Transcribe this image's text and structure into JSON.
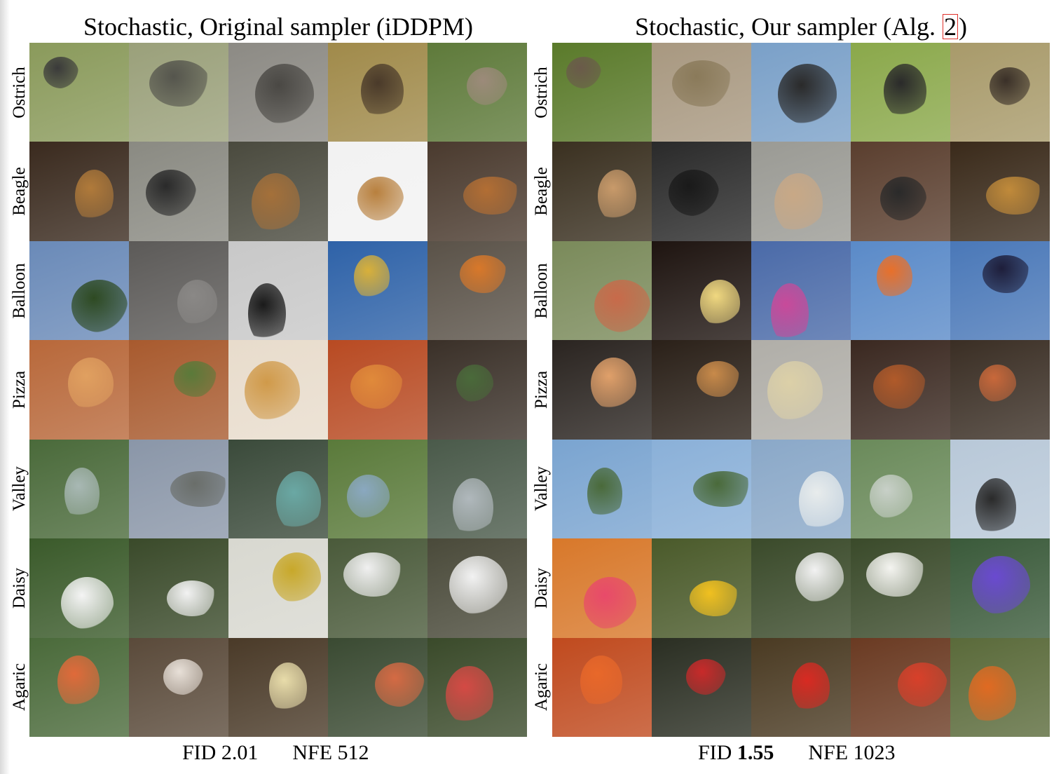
{
  "left": {
    "title": "Stochastic, Original sampler (iDDPM)",
    "footer": {
      "fid_label": "FID",
      "fid_value": "2.01",
      "nfe_label": "NFE",
      "nfe_value": "512"
    }
  },
  "right": {
    "title_prefix": "Stochastic, Our sampler (Alg.",
    "title_ref": "2",
    "title_suffix": ")",
    "footer": {
      "fid_label": "FID",
      "fid_value": "1.55",
      "nfe_label": "NFE",
      "nfe_value": "1023"
    }
  },
  "row_labels": [
    "Ostrich",
    "Beagle",
    "Balloon",
    "Pizza",
    "Valley",
    "Daisy",
    "Agaric"
  ],
  "colors": {
    "reference_box": "#e0302a"
  },
  "left_images": [
    [
      {
        "bg": "#8a9a5b",
        "fg": "#3a3a3a"
      },
      {
        "bg": "#9aa07a",
        "fg": "#55554d"
      },
      {
        "bg": "#8c8a84",
        "fg": "#4a4844"
      },
      {
        "bg": "#a08a4a",
        "fg": "#4a3a2a"
      },
      {
        "bg": "#5e7a3a",
        "fg": "#9c8a7a"
      }
    ],
    [
      {
        "bg": "#3a2a1e",
        "fg": "#b07a3a"
      },
      {
        "bg": "#8a8a82",
        "fg": "#2a2a2a"
      },
      {
        "bg": "#4a4a3e",
        "fg": "#a4703a"
      },
      {
        "bg": "#f2f2f2",
        "fg": "#b8803e"
      },
      {
        "bg": "#4a3a2e",
        "fg": "#b26e34"
      }
    ],
    [
      {
        "bg": "#6a8ab8",
        "fg": "#2e4a22"
      },
      {
        "bg": "#5c5a58",
        "fg": "#8a8886"
      },
      {
        "bg": "#c8c8c8",
        "fg": "#1a1a1a"
      },
      {
        "bg": "#2e62a8",
        "fg": "#d8b03a"
      },
      {
        "bg": "#5a5248",
        "fg": "#d8782a"
      }
    ],
    [
      {
        "bg": "#b8683a",
        "fg": "#e0a060"
      },
      {
        "bg": "#a85a2e",
        "fg": "#5a7a3a"
      },
      {
        "bg": "#e8dccc",
        "fg": "#d09a4a"
      },
      {
        "bg": "#b84a22",
        "fg": "#e08a3a"
      },
      {
        "bg": "#3a3028",
        "fg": "#4a6a3a"
      }
    ],
    [
      {
        "bg": "#4a6a3a",
        "fg": "#a8b8b4"
      },
      {
        "bg": "#8a96a8",
        "fg": "#6a6e6a"
      },
      {
        "bg": "#3a4a3a",
        "fg": "#6aa8a4"
      },
      {
        "bg": "#5a7a3a",
        "fg": "#8aa8c0"
      },
      {
        "bg": "#4a5a4a",
        "fg": "#b0b8bc"
      }
    ],
    [
      {
        "bg": "#3a5a2a",
        "fg": "#f4f4f4"
      },
      {
        "bg": "#3a4a2a",
        "fg": "#f2f2f2"
      },
      {
        "bg": "#d8d8d0",
        "fg": "#c8a82a"
      },
      {
        "bg": "#4a5a3a",
        "fg": "#f0f0f0"
      },
      {
        "bg": "#4a4a3a",
        "fg": "#f2f2f2"
      }
    ],
    [
      {
        "bg": "#4a6a3a",
        "fg": "#e06a3a"
      },
      {
        "bg": "#5a4a3a",
        "fg": "#e8e0d8"
      },
      {
        "bg": "#4a3a28",
        "fg": "#e8dcaa"
      },
      {
        "bg": "#3a4a32",
        "fg": "#d46a44"
      },
      {
        "bg": "#3a4a2a",
        "fg": "#d44a44"
      }
    ]
  ],
  "right_images": [
    [
      {
        "bg": "#5a7a2a",
        "fg": "#6a5a4a"
      },
      {
        "bg": "#a89880",
        "fg": "#8a7a5a"
      },
      {
        "bg": "#7aa0c8",
        "fg": "#2a2a2a"
      },
      {
        "bg": "#8aa84a",
        "fg": "#2a2a2a"
      },
      {
        "bg": "#a89a6a",
        "fg": "#3a3028"
      }
    ],
    [
      {
        "bg": "#3a3020",
        "fg": "#c89a6a"
      },
      {
        "bg": "#2a2a2a",
        "fg": "#1a1a1a"
      },
      {
        "bg": "#9a9a94",
        "fg": "#c8a886"
      },
      {
        "bg": "#5a3e2e",
        "fg": "#2a2a2a"
      },
      {
        "bg": "#3a2a1a",
        "fg": "#c08a3a"
      }
    ],
    [
      {
        "bg": "#7a8a5a",
        "fg": "#c86a4a"
      },
      {
        "bg": "#1e1410",
        "fg": "#f0d880"
      },
      {
        "bg": "#4a6aa8",
        "fg": "#c84a9a"
      },
      {
        "bg": "#5a8ac8",
        "fg": "#e8702a"
      },
      {
        "bg": "#4a78b8",
        "fg": "#1e1e3a"
      }
    ],
    [
      {
        "bg": "#2a2420",
        "fg": "#e0a06a"
      },
      {
        "bg": "#2a2018",
        "fg": "#c88a4a"
      },
      {
        "bg": "#b0aea8",
        "fg": "#dcd0a8"
      },
      {
        "bg": "#3a2820",
        "fg": "#b05a2a"
      },
      {
        "bg": "#3a2e24",
        "fg": "#c8683a"
      }
    ],
    [
      {
        "bg": "#7aa4d0",
        "fg": "#4a6a3a"
      },
      {
        "bg": "#8ab0d8",
        "fg": "#4a6a3a"
      },
      {
        "bg": "#8aa8c8",
        "fg": "#e8ecec"
      },
      {
        "bg": "#6a8a5a",
        "fg": "#c8d0c8"
      },
      {
        "bg": "#b8c8d8",
        "fg": "#2a2a2a"
      }
    ],
    [
      {
        "bg": "#d8782a",
        "fg": "#e84a6a"
      },
      {
        "bg": "#4a5a2a",
        "fg": "#f0c020"
      },
      {
        "bg": "#3a4a2a",
        "fg": "#f2f2f2"
      },
      {
        "bg": "#3a4a2a",
        "fg": "#f4f4f0"
      },
      {
        "bg": "#3a5a3a",
        "fg": "#6a4ad0"
      }
    ],
    [
      {
        "bg": "#c04a1e",
        "fg": "#e8682a"
      },
      {
        "bg": "#2a2e22",
        "fg": "#c82a2a"
      },
      {
        "bg": "#4a3a22",
        "fg": "#d82a22"
      },
      {
        "bg": "#6a3a22",
        "fg": "#d8402a"
      },
      {
        "bg": "#5a6a3a",
        "fg": "#e06a22"
      }
    ]
  ]
}
